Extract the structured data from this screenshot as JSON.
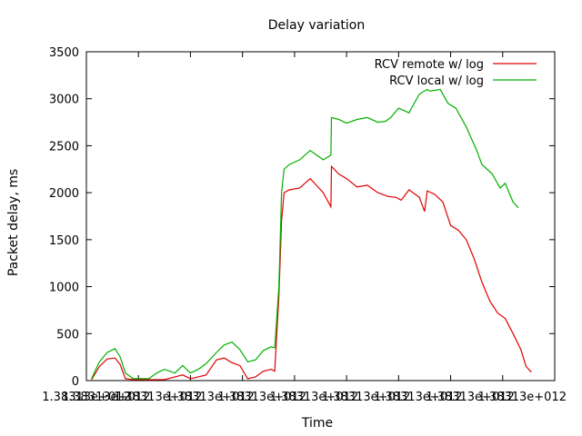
{
  "chart_data": {
    "type": "line",
    "title": "Delay variation",
    "xlabel": "Time",
    "ylabel": "Packet delay, ms",
    "ylim": [
      0,
      3500
    ],
    "xlim": [
      0,
      9
    ],
    "y_ticks": [
      0,
      500,
      1000,
      1500,
      2000,
      2500,
      3000,
      3500
    ],
    "x_tick_labels": [
      "1.38313e+012",
      "1.38313e+012",
      "1.38313e+012",
      "1.38313e+012",
      "1.38313e+012",
      "1.38313e+012",
      "1.38313e+012",
      "1.38313e+012",
      "1.38313e+012",
      "1.38313e+012"
    ],
    "x_tick_prefix": "1.38313",
    "x_tick_suffix": "e+012",
    "grid": false,
    "legend_position": "top-right",
    "series": [
      {
        "name": "RCV remote w/ log",
        "color": "#e00000",
        "x": [
          0.1,
          0.25,
          0.4,
          0.55,
          0.65,
          0.75,
          0.9,
          1.2,
          1.5,
          1.7,
          1.85,
          2.0,
          2.15,
          2.3,
          2.5,
          2.65,
          2.8,
          2.95,
          3.1,
          3.25,
          3.4,
          3.55,
          3.62,
          3.7,
          3.75,
          3.8,
          3.9,
          4.1,
          4.3,
          4.55,
          4.7,
          4.71,
          4.85,
          5.0,
          5.2,
          5.4,
          5.6,
          5.8,
          5.95,
          6.05,
          6.2,
          6.4,
          6.5,
          6.55,
          6.7,
          6.85,
          7.0,
          7.15,
          7.3,
          7.45,
          7.6,
          7.75,
          7.9,
          8.05,
          8.2,
          8.35,
          8.45,
          8.55
        ],
        "y": [
          10,
          150,
          230,
          240,
          170,
          20,
          10,
          10,
          10,
          40,
          60,
          20,
          40,
          60,
          220,
          240,
          190,
          160,
          20,
          40,
          100,
          120,
          100,
          900,
          1700,
          2000,
          2030,
          2050,
          2150,
          2000,
          1850,
          2280,
          2200,
          2150,
          2060,
          2080,
          2000,
          1960,
          1950,
          1920,
          2030,
          1950,
          1800,
          2020,
          1980,
          1900,
          1650,
          1600,
          1500,
          1300,
          1050,
          850,
          720,
          660,
          500,
          330,
          150,
          90
        ]
      },
      {
        "name": "RCV local w/ log",
        "color": "#00b000",
        "x": [
          0.1,
          0.25,
          0.4,
          0.55,
          0.65,
          0.75,
          0.9,
          1.2,
          1.35,
          1.5,
          1.7,
          1.85,
          2.0,
          2.15,
          2.3,
          2.5,
          2.65,
          2.8,
          2.95,
          3.1,
          3.25,
          3.4,
          3.55,
          3.62,
          3.7,
          3.75,
          3.8,
          3.9,
          4.1,
          4.3,
          4.55,
          4.7,
          4.71,
          4.85,
          5.0,
          5.2,
          5.4,
          5.6,
          5.75,
          5.85,
          6.0,
          6.2,
          6.25,
          6.4,
          6.55,
          6.6,
          6.8,
          6.95,
          7.1,
          7.3,
          7.5,
          7.6,
          7.8,
          7.95,
          8.05,
          8.2,
          8.3
        ],
        "y": [
          20,
          200,
          300,
          340,
          250,
          80,
          20,
          20,
          80,
          120,
          80,
          160,
          80,
          120,
          180,
          300,
          380,
          410,
          330,
          200,
          220,
          320,
          360,
          350,
          1000,
          2000,
          2250,
          2300,
          2350,
          2450,
          2350,
          2400,
          2800,
          2780,
          2740,
          2780,
          2800,
          2750,
          2760,
          2800,
          2900,
          2850,
          2900,
          3050,
          3100,
          3080,
          3100,
          2950,
          2900,
          2700,
          2450,
          2300,
          2200,
          2050,
          2100,
          1900,
          1840
        ]
      }
    ]
  }
}
